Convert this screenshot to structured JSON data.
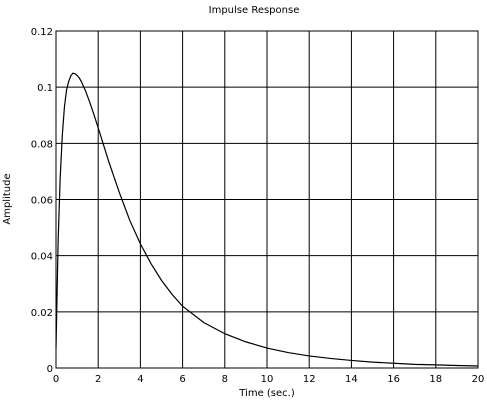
{
  "chart_data": {
    "type": "line",
    "title": "Impulse Response",
    "xlabel": "Time (sec.)",
    "ylabel": "Amplitude",
    "xlim": [
      0,
      20
    ],
    "ylim": [
      0,
      0.12
    ],
    "grid": true,
    "x_ticks": [
      0,
      2,
      4,
      6,
      8,
      10,
      12,
      14,
      16,
      18,
      20
    ],
    "y_ticks": [
      0,
      0.02,
      0.04,
      0.06,
      0.08,
      0.1,
      0.12
    ],
    "x_tick_labels": [
      "0",
      "2",
      "4",
      "6",
      "8",
      "10",
      "12",
      "14",
      "16",
      "18",
      "20"
    ],
    "y_tick_labels": [
      "0",
      "0.02",
      "0.04",
      "0.06",
      "0.08",
      "0.1",
      "0.12"
    ],
    "series": [
      {
        "color": "#000000",
        "x": [
          0,
          0.1,
          0.2,
          0.3,
          0.4,
          0.5,
          0.6,
          0.7,
          0.8,
          0.9,
          1.0,
          1.1,
          1.2,
          1.4,
          1.6,
          1.8,
          2.0,
          2.5,
          3.0,
          3.5,
          4.0,
          4.5,
          5.0,
          5.5,
          6.0,
          7.0,
          8.0,
          9.0,
          10.0,
          11.0,
          12.0,
          13.0,
          14.0,
          15.0,
          16.0,
          17.0,
          18.0,
          19.0,
          20.0
        ],
        "y": [
          0.007,
          0.045,
          0.068,
          0.083,
          0.093,
          0.099,
          0.102,
          0.104,
          0.105,
          0.1048,
          0.1042,
          0.1033,
          0.102,
          0.0987,
          0.0946,
          0.0902,
          0.0855,
          0.0735,
          0.0625,
          0.0525,
          0.0442,
          0.0372,
          0.0312,
          0.0262,
          0.022,
          0.0162,
          0.0122,
          0.0093,
          0.0071,
          0.0055,
          0.0043,
          0.0034,
          0.0027,
          0.0021,
          0.0017,
          0.0013,
          0.0011,
          0.0009,
          0.0007
        ]
      }
    ]
  }
}
